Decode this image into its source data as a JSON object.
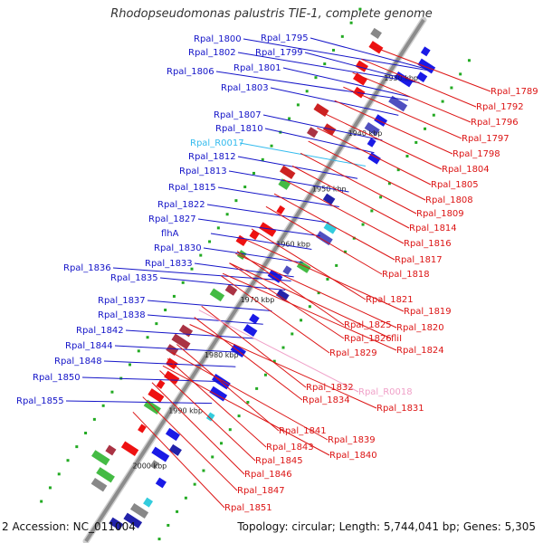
{
  "title": "Rhodopseudomonas palustris TIE-1, complete genome",
  "footer": {
    "accession": "2 Accession: NC_011004",
    "summary": "Topology: circular; Length: 5,744,041 bp; Genes: 5,305"
  },
  "colors": {
    "left_label": "#1414c8",
    "right_label": "#dc1414",
    "rna_left": "#33bbee",
    "rna_right": "#f0a0c8",
    "backbone": "#8c8c8c"
  },
  "ticks": [
    {
      "label": "1930 kbp"
    },
    {
      "label": "1940 kbp"
    },
    {
      "label": "1950 kbp"
    },
    {
      "label": "1960 kbp"
    },
    {
      "label": "1970 kbp"
    },
    {
      "label": "1980 kbp"
    },
    {
      "label": "1990 kbp"
    },
    {
      "label": "2000 kbp"
    }
  ],
  "left_genes": [
    {
      "name": "Rpal_1800"
    },
    {
      "name": "Rpal_1795"
    },
    {
      "name": "Rpal_1802"
    },
    {
      "name": "Rpal_1799"
    },
    {
      "name": "Rpal_1801"
    },
    {
      "name": "Rpal_1806"
    },
    {
      "name": "Rpal_1803"
    },
    {
      "name": "Rpal_1807"
    },
    {
      "name": "Rpal_1810"
    },
    {
      "name": "Rpal_R0017",
      "rna": true
    },
    {
      "name": "Rpal_1812"
    },
    {
      "name": "Rpal_1813"
    },
    {
      "name": "Rpal_1815"
    },
    {
      "name": "Rpal_1822"
    },
    {
      "name": "Rpal_1827"
    },
    {
      "name": "flhA"
    },
    {
      "name": "Rpal_1830"
    },
    {
      "name": "Rpal_1833"
    },
    {
      "name": "Rpal_1836"
    },
    {
      "name": "Rpal_1835"
    },
    {
      "name": "Rpal_1837"
    },
    {
      "name": "Rpal_1838"
    },
    {
      "name": "Rpal_1842"
    },
    {
      "name": "Rpal_1844"
    },
    {
      "name": "Rpal_1848"
    },
    {
      "name": "Rpal_1850"
    },
    {
      "name": "Rpal_1855"
    }
  ],
  "right_genes": [
    {
      "name": "Rpal_1789"
    },
    {
      "name": "Rpal_1792"
    },
    {
      "name": "Rpal_1796"
    },
    {
      "name": "Rpal_1797"
    },
    {
      "name": "Rpal_1798"
    },
    {
      "name": "Rpal_1804"
    },
    {
      "name": "Rpal_1805"
    },
    {
      "name": "Rpal_1808"
    },
    {
      "name": "Rpal_1809"
    },
    {
      "name": "Rpal_1814"
    },
    {
      "name": "Rpal_1816"
    },
    {
      "name": "Rpal_1817"
    },
    {
      "name": "Rpal_1818"
    },
    {
      "name": "Rpal_1821"
    },
    {
      "name": "Rpal_1819"
    },
    {
      "name": "Rpal_1820"
    },
    {
      "name": "Rpal_1825"
    },
    {
      "name": "Rpal_1826"
    },
    {
      "name": "fliI"
    },
    {
      "name": "Rpal_1824"
    },
    {
      "name": "Rpal_1829"
    },
    {
      "name": "Rpal_1832"
    },
    {
      "name": "Rpal_R0018",
      "rna": true
    },
    {
      "name": "Rpal_1834"
    },
    {
      "name": "Rpal_1831"
    },
    {
      "name": "Rpal_1841"
    },
    {
      "name": "Rpal_1839"
    },
    {
      "name": "Rpal_1843"
    },
    {
      "name": "Rpal_1840"
    },
    {
      "name": "Rpal_1845"
    },
    {
      "name": "Rpal_1846"
    },
    {
      "name": "Rpal_1847"
    },
    {
      "name": "Rpal_1851"
    }
  ]
}
